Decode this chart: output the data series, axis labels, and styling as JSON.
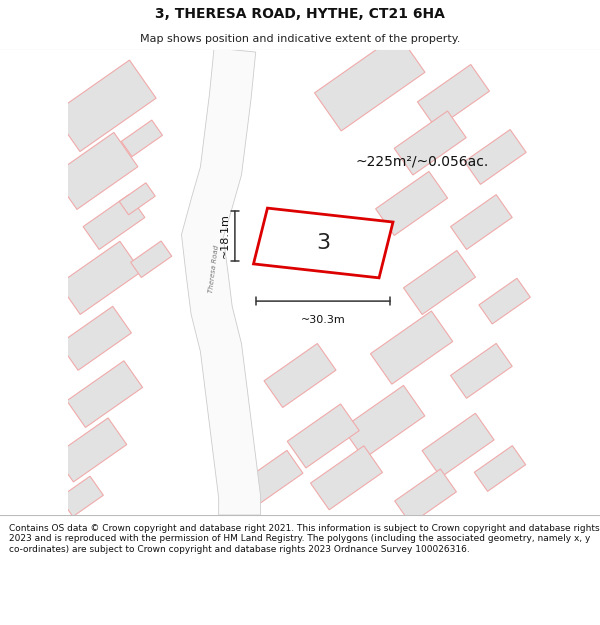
{
  "title": "3, THERESA ROAD, HYTHE, CT21 6HA",
  "subtitle": "Map shows position and indicative extent of the property.",
  "footer": "Contains OS data © Crown copyright and database right 2021. This information is subject to Crown copyright and database rights 2023 and is reproduced with the permission of HM Land Registry. The polygons (including the associated geometry, namely x, y co-ordinates) are subject to Crown copyright and database rights 2023 Ordnance Survey 100026316.",
  "area_label": "~225m²/~0.056ac.",
  "width_label": "~30.3m",
  "height_label": "~18.1m",
  "plot_number": "3",
  "road_label": "Theresa Road",
  "map_bg": "#f2f2f2",
  "plot_fill": "#ffffff",
  "plot_edge_color": "#dd0000",
  "block_fill": "#e2e2e2",
  "block_edge_light": "#f0aaaa",
  "road_fill": "#fafafa",
  "road_edge_color": "#cccccc",
  "dim_line_color": "#333333",
  "text_color": "#111111",
  "title_fontsize": 10,
  "subtitle_fontsize": 8,
  "footer_fontsize": 6.5
}
